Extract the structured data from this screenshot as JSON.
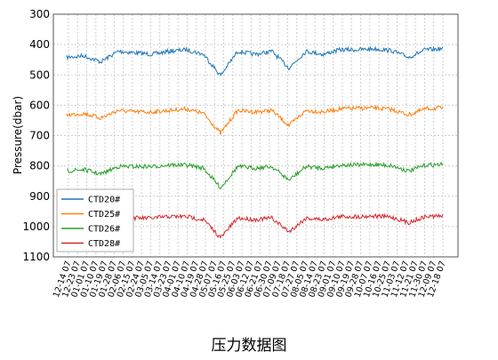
{
  "caption": "压力数据图",
  "chart_data": {
    "type": "line",
    "ylabel": "Pressure(dbar)",
    "ylim": [
      1100,
      300
    ],
    "y_inverted": true,
    "yticks": [
      300,
      400,
      500,
      600,
      700,
      800,
      900,
      1000,
      1100
    ],
    "grid": true,
    "legend_position": "bottom-left",
    "x": [
      "12-14 07",
      "12-31 07",
      "01-17 07",
      "02-03 07",
      "02-20 07",
      "03-09 07",
      "03-26 07",
      "04-12 07",
      "04-29 07",
      "05-16 07",
      "06-02 07",
      "06-19 07",
      "07-06 07",
      "07-23 07",
      "08-09 07",
      "08-26 07",
      "09-12 07",
      "09-29 07",
      "10-16 07",
      "11-02 07",
      "11-19 07",
      "12-06 07",
      "12-23 07"
    ],
    "xtick_labels": [
      "12-14 07",
      "12-23 07",
      "01-01 07",
      "01-10 07",
      "01-19 07",
      "01-28 07",
      "02-06 07",
      "02-15 07",
      "02-24 07",
      "03-05 07",
      "03-14 07",
      "03-23 07",
      "04-01 07",
      "04-10 07",
      "04-19 07",
      "04-28 07",
      "05-07 07",
      "05-16 07",
      "05-25 07",
      "06-03 07",
      "06-12 07",
      "06-21 07",
      "06-30 07",
      "07-09 07",
      "07-18 07",
      "07-27 07",
      "08-05 07",
      "08-14 07",
      "08-23 07",
      "09-01 07",
      "09-10 07",
      "09-19 07",
      "09-28 07",
      "10-07 07",
      "10-16 07",
      "10-25 07",
      "11-03 07",
      "11-12 07",
      "11-21 07",
      "11-30 07",
      "12-09 07",
      "12-18 07"
    ],
    "series": [
      {
        "name": "CTD20#",
        "color": "#1f77b4",
        "values": [
          440,
          435,
          455,
          420,
          425,
          430,
          420,
          415,
          430,
          500,
          420,
          430,
          420,
          475,
          420,
          430,
          415,
          415,
          412,
          418,
          440,
          415,
          412
        ]
      },
      {
        "name": "CTD25#",
        "color": "#ff7f0e",
        "values": [
          630,
          625,
          640,
          615,
          620,
          620,
          615,
          610,
          625,
          690,
          615,
          620,
          615,
          665,
          615,
          620,
          610,
          608,
          607,
          612,
          630,
          610,
          607
        ]
      },
      {
        "name": "CTD26#",
        "color": "#2ca02c",
        "values": [
          815,
          810,
          825,
          800,
          800,
          800,
          795,
          795,
          805,
          870,
          800,
          805,
          800,
          845,
          800,
          805,
          795,
          795,
          793,
          797,
          815,
          795,
          793
        ]
      },
      {
        "name": "CTD28#",
        "color": "#d62728",
        "values": [
          980,
          975,
          990,
          970,
          970,
          970,
          965,
          965,
          975,
          1035,
          970,
          975,
          970,
          1015,
          970,
          975,
          965,
          965,
          963,
          967,
          985,
          965,
          963
        ]
      }
    ]
  }
}
